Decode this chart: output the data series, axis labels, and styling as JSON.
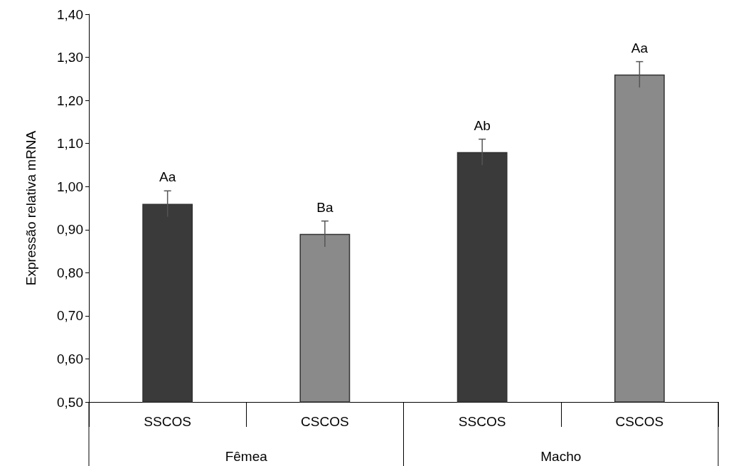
{
  "chart_data": {
    "type": "bar",
    "ylabel": "Expressão relativa mRNA",
    "categories": [
      "SSCOS",
      "CSCOS",
      "SSCOS",
      "CSCOS"
    ],
    "values": [
      0.96,
      0.89,
      1.08,
      1.26
    ],
    "errors": [
      0.03,
      0.03,
      0.03,
      0.03
    ],
    "colors": [
      "#3a3a3a",
      "#8a8a8a",
      "#3a3a3a",
      "#8a8a8a"
    ],
    "value_labels": [
      "Aa",
      "Ba",
      "Ab",
      "Aa"
    ],
    "annotations": [
      "Fêmea",
      "Macho"
    ],
    "ylim": [
      0.5,
      1.4
    ],
    "yticks": [
      {
        "value": 0.5,
        "label": "0,50"
      },
      {
        "value": 0.6,
        "label": "0,60"
      },
      {
        "value": 0.7,
        "label": "0,70"
      },
      {
        "value": 0.8,
        "label": "0,80"
      },
      {
        "value": 0.9,
        "label": "0,90"
      },
      {
        "value": 1.0,
        "label": "1,00"
      },
      {
        "value": 1.1,
        "label": "1,10"
      },
      {
        "value": 1.2,
        "label": "1,20"
      },
      {
        "value": 1.3,
        "label": "1,30"
      },
      {
        "value": 1.4,
        "label": "1,40"
      }
    ],
    "grid": false
  }
}
